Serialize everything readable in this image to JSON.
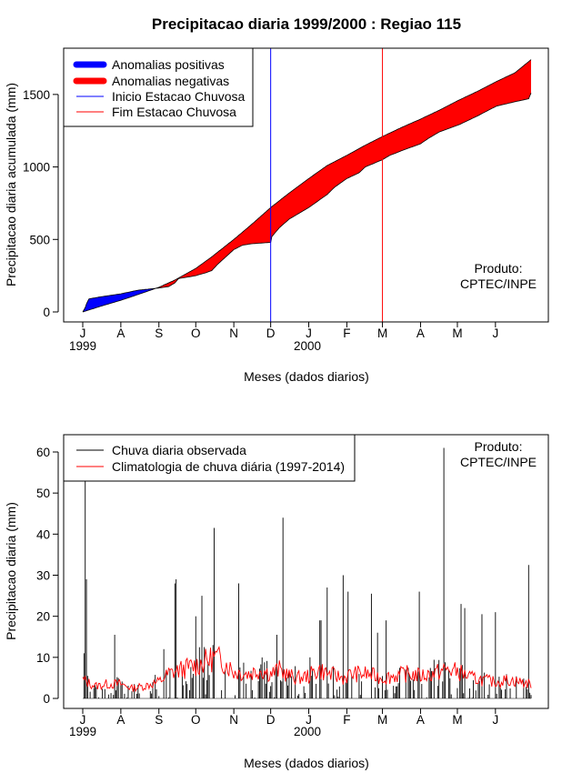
{
  "title": "Precipitacao diaria 1999/2000 : Regiao 115",
  "product_label": "Produto:",
  "product_value": "CPTEC/INPE",
  "x_axis_label": "Meses (dados diarios)",
  "month_ticks": [
    "J",
    "A",
    "S",
    "O",
    "N",
    "D",
    "J",
    "F",
    "M",
    "A",
    "M",
    "J"
  ],
  "year_labels": [
    "1999",
    "2000"
  ],
  "colors": {
    "positive": "#0000ff",
    "negative": "#ff0000",
    "start_line": "#0000ff",
    "end_line": "#ff0000",
    "observed": "#000000",
    "climatology": "#ff0000"
  },
  "chart_data": [
    {
      "type": "area",
      "name": "accumulated",
      "ylabel": "Precipitacao diaria acumulada (mm)",
      "xlabel": "Meses (dados diarios)",
      "x_unit": "day since 1999-07-01",
      "xlim": [
        0,
        365
      ],
      "ylim": [
        0,
        1750
      ],
      "yticks": [
        0,
        500,
        1000,
        1500
      ],
      "legend": {
        "position": "top-left",
        "entries": [
          "Anomalias positivas",
          "Anomalias negativas",
          "Inicio Estacao Chuvosa",
          "Fim Estacao Chuvosa"
        ]
      },
      "vertical_lines": [
        {
          "name": "Inicio Estacao Chuvosa",
          "day": 153
        },
        {
          "name": "Fim Estacao Chuvosa",
          "day": 244
        }
      ],
      "series": [
        {
          "name": "Climatologia acumulada",
          "points": [
            [
              0,
              0
            ],
            [
              15,
              40
            ],
            [
              31,
              80
            ],
            [
              45,
              120
            ],
            [
              62,
              170
            ],
            [
              75,
              220
            ],
            [
              92,
              300
            ],
            [
              105,
              380
            ],
            [
              123,
              500
            ],
            [
              137,
              600
            ],
            [
              153,
              720
            ],
            [
              168,
              820
            ],
            [
              184,
              920
            ],
            [
              199,
              1010
            ],
            [
              215,
              1080
            ],
            [
              230,
              1150
            ],
            [
              244,
              1210
            ],
            [
              259,
              1270
            ],
            [
              275,
              1330
            ],
            [
              290,
              1390
            ],
            [
              306,
              1460
            ],
            [
              321,
              1520
            ],
            [
              337,
              1590
            ],
            [
              352,
              1650
            ],
            [
              365,
              1740
            ]
          ]
        },
        {
          "name": "Chuva observada acumulada",
          "points": [
            [
              0,
              0
            ],
            [
              2,
              30
            ],
            [
              3,
              55
            ],
            [
              5,
              90
            ],
            [
              15,
              105
            ],
            [
              31,
              125
            ],
            [
              45,
              150
            ],
            [
              62,
              165
            ],
            [
              70,
              175
            ],
            [
              75,
              200
            ],
            [
              78,
              230
            ],
            [
              92,
              250
            ],
            [
              100,
              270
            ],
            [
              105,
              285
            ],
            [
              110,
              330
            ],
            [
              123,
              430
            ],
            [
              130,
              460
            ],
            [
              137,
              470
            ],
            [
              153,
              480
            ],
            [
              154,
              520
            ],
            [
              160,
              580
            ],
            [
              168,
              640
            ],
            [
              184,
              720
            ],
            [
              199,
              810
            ],
            [
              205,
              860
            ],
            [
              215,
              920
            ],
            [
              225,
              960
            ],
            [
              230,
              1000
            ],
            [
              244,
              1050
            ],
            [
              250,
              1080
            ],
            [
              259,
              1110
            ],
            [
              275,
              1160
            ],
            [
              282,
              1200
            ],
            [
              290,
              1240
            ],
            [
              306,
              1290
            ],
            [
              321,
              1350
            ],
            [
              330,
              1390
            ],
            [
              337,
              1420
            ],
            [
              352,
              1450
            ],
            [
              363,
              1470
            ],
            [
              365,
              1510
            ]
          ]
        }
      ]
    },
    {
      "type": "line",
      "name": "daily",
      "ylabel": "Precipitacao diaria (mm)",
      "xlabel": "Meses (dados diarios)",
      "x_unit": "day since 1999-07-01",
      "xlim": [
        0,
        365
      ],
      "ylim": [
        0,
        63
      ],
      "yticks": [
        0,
        10,
        20,
        30,
        40,
        50,
        60
      ],
      "legend": {
        "position": "top-left",
        "entries": [
          "Chuva diaria observada",
          "Climatologia de chuva diária (1997-2014)"
        ]
      },
      "observed_peaks": [
        [
          1,
          11
        ],
        [
          2,
          58
        ],
        [
          3,
          29
        ],
        [
          26,
          15.5
        ],
        [
          66,
          12
        ],
        [
          75,
          28
        ],
        [
          76,
          29
        ],
        [
          92,
          20
        ],
        [
          97,
          25
        ],
        [
          106,
          13
        ],
        [
          107,
          41.5
        ],
        [
          113,
          2
        ],
        [
          127,
          28
        ],
        [
          153,
          3
        ],
        [
          158,
          15.5
        ],
        [
          163,
          44
        ],
        [
          185,
          10
        ],
        [
          193,
          19
        ],
        [
          194,
          19
        ],
        [
          199,
          27
        ],
        [
          212,
          30
        ],
        [
          216,
          26
        ],
        [
          235,
          25.5
        ],
        [
          240,
          16
        ],
        [
          247,
          19
        ],
        [
          274,
          26
        ],
        [
          294,
          61
        ],
        [
          308,
          23
        ],
        [
          311,
          22
        ],
        [
          325,
          20.5
        ],
        [
          336,
          21
        ],
        [
          363,
          32.5
        ]
      ],
      "climatology_points": [
        [
          0,
          4.5
        ],
        [
          10,
          3
        ],
        [
          20,
          3.5
        ],
        [
          31,
          3.5
        ],
        [
          40,
          2.5
        ],
        [
          50,
          3
        ],
        [
          62,
          4
        ],
        [
          70,
          6
        ],
        [
          80,
          7
        ],
        [
          92,
          8
        ],
        [
          100,
          9
        ],
        [
          107,
          10
        ],
        [
          115,
          9
        ],
        [
          123,
          6.5
        ],
        [
          135,
          6
        ],
        [
          145,
          7
        ],
        [
          153,
          6
        ],
        [
          160,
          7
        ],
        [
          168,
          5.5
        ],
        [
          176,
          5
        ],
        [
          184,
          5.5
        ],
        [
          192,
          7
        ],
        [
          200,
          6
        ],
        [
          212,
          5
        ],
        [
          220,
          6
        ],
        [
          230,
          6
        ],
        [
          244,
          5
        ],
        [
          254,
          5.5
        ],
        [
          264,
          6
        ],
        [
          275,
          5.5
        ],
        [
          285,
          6
        ],
        [
          296,
          7
        ],
        [
          306,
          6.5
        ],
        [
          316,
          5
        ],
        [
          326,
          4.5
        ],
        [
          336,
          4
        ],
        [
          346,
          4.5
        ],
        [
          356,
          4
        ],
        [
          365,
          3.5
        ]
      ]
    }
  ]
}
